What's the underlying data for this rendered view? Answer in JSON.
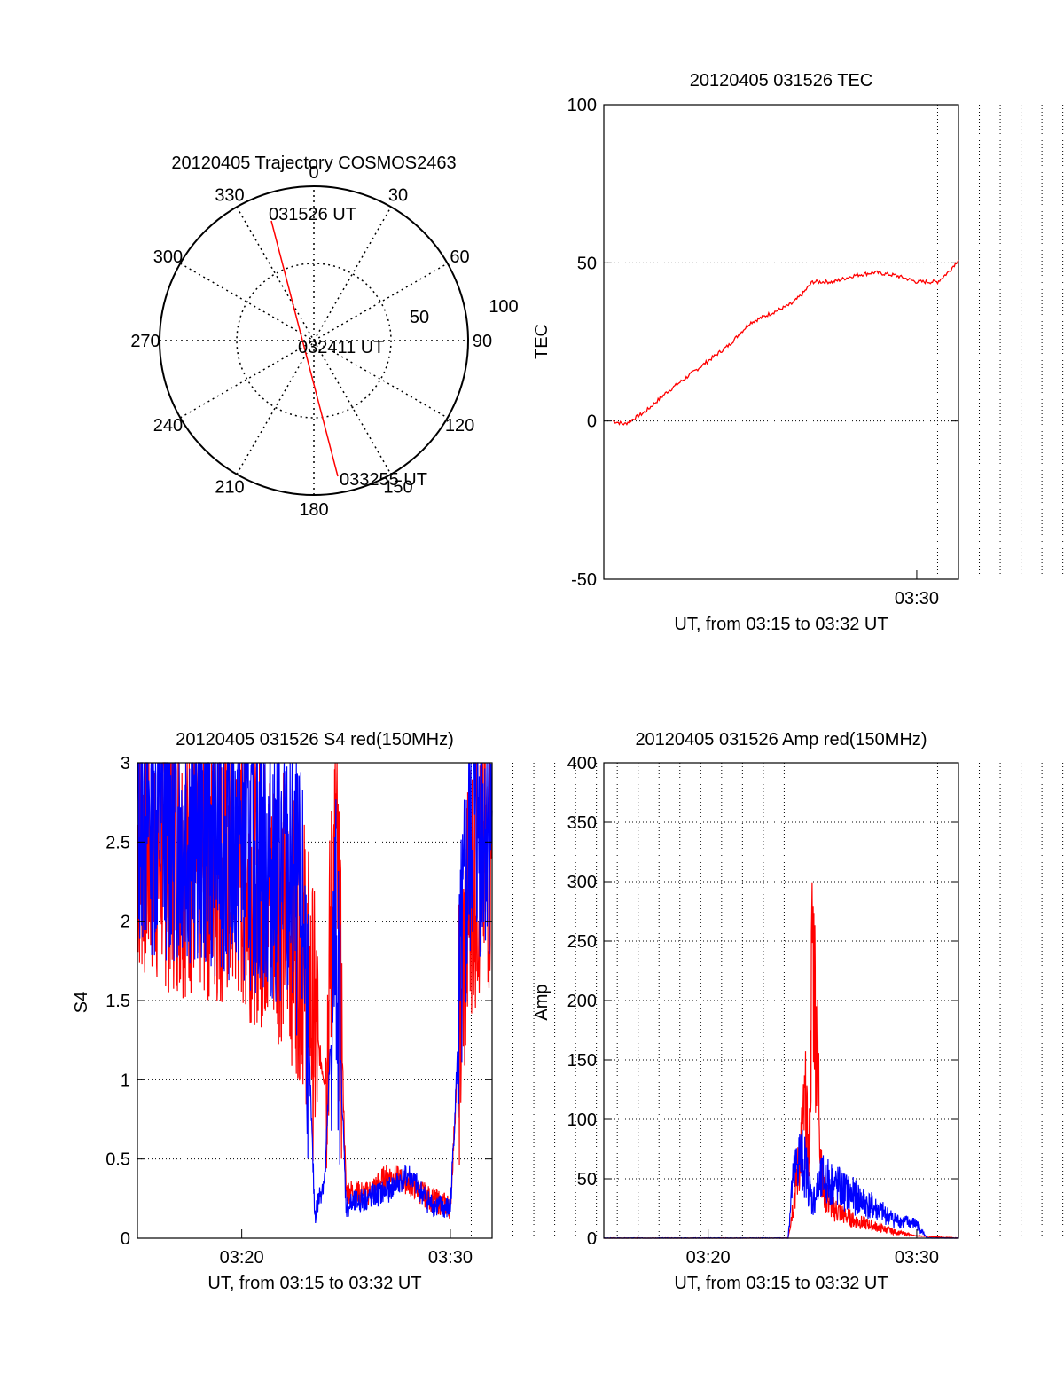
{
  "colors": {
    "red": "#ff0000",
    "blue": "#0000ff",
    "axis": "#000000",
    "grid": "#000000"
  },
  "chart_data": [
    {
      "type": "polar",
      "title": "20120405 Trajectory COSMOS2463",
      "angle_labels": [
        "0",
        "30",
        "60",
        "90",
        "120",
        "150",
        "180",
        "210",
        "240",
        "270",
        "300",
        "330"
      ],
      "radius_labels": [
        "50",
        "100"
      ],
      "grid": true,
      "series": [
        {
          "color": "red",
          "points": [
            {
              "azimuth": 345,
              "elevation": 20
            },
            {
              "azimuth": 163,
              "elevation": 5
            }
          ]
        }
      ],
      "annotations": [
        "031526 UT",
        "032411 UT",
        "033255 UT"
      ]
    },
    {
      "type": "line",
      "title": "20120405 031526 TEC",
      "xlabel": "UT, from 03:15 to 03:32 UT",
      "ylabel": "TEC",
      "ylim": [
        -50,
        100
      ],
      "yticks": [
        "-50",
        "0",
        "50",
        "100"
      ],
      "xticks": [
        "03:30"
      ],
      "grid": true,
      "series": [
        {
          "color": "red",
          "x": [
            "03:15:26",
            "03:16:00",
            "03:17:00",
            "03:18:00",
            "03:19:00",
            "03:20:00",
            "03:21:00",
            "03:22:00",
            "03:23:00",
            "03:24:00",
            "03:24:30",
            "03:25:00",
            "03:26:00",
            "03:27:00",
            "03:28:00",
            "03:29:00",
            "03:30:00",
            "03:31:00",
            "03:31:30",
            "03:32:00"
          ],
          "y": [
            0,
            -1,
            3,
            9,
            14,
            19,
            24,
            31,
            34,
            37,
            40,
            44,
            44,
            46,
            47,
            46,
            44,
            44,
            47,
            51
          ]
        }
      ]
    },
    {
      "type": "line",
      "title": "20120405 031526 S4 red(150MHz)",
      "xlabel": "UT, from 03:15 to 03:32 UT",
      "ylabel": "S4",
      "ylim": [
        0,
        3
      ],
      "yticks": [
        "0",
        "0.5",
        "1",
        "1.5",
        "2",
        "2.5",
        "3"
      ],
      "xticks": [
        "03:20",
        "03:30"
      ],
      "grid": true,
      "series": [
        {
          "color": "red",
          "x": [
            "03:15:00",
            "03:20:00",
            "03:22:00",
            "03:23:00",
            "03:23:30",
            "03:24:00",
            "03:24:30",
            "03:25:00",
            "03:26:00",
            "03:27:00",
            "03:28:00",
            "03:29:00",
            "03:30:00",
            "03:30:30",
            "03:31:00",
            "03:32:00"
          ],
          "y": [
            2.5,
            2.3,
            2.1,
            1.8,
            1.3,
            1.0,
            2.6,
            0.3,
            0.28,
            0.4,
            0.35,
            0.25,
            0.2,
            1.5,
            2.3,
            2.4
          ]
        },
        {
          "color": "blue",
          "x": [
            "03:15:00",
            "03:20:00",
            "03:22:00",
            "03:23:00",
            "03:23:30",
            "03:24:00",
            "03:24:30",
            "03:25:00",
            "03:26:00",
            "03:27:00",
            "03:28:00",
            "03:29:00",
            "03:30:00",
            "03:30:30",
            "03:31:00",
            "03:32:00"
          ],
          "y": [
            2.7,
            2.5,
            2.3,
            2.0,
            0.15,
            0.4,
            2.0,
            0.2,
            0.25,
            0.3,
            0.4,
            0.22,
            0.18,
            1.6,
            2.6,
            2.7
          ]
        }
      ]
    },
    {
      "type": "line",
      "title": "20120405 031526 Amp red(150MHz)",
      "xlabel": "UT, from 03:15 to 03:32 UT",
      "ylabel": "Amp",
      "ylim": [
        0,
        400
      ],
      "yticks": [
        "0",
        "50",
        "100",
        "150",
        "200",
        "250",
        "300",
        "350",
        "400"
      ],
      "xticks": [
        "03:20",
        "03:30"
      ],
      "grid": true,
      "series": [
        {
          "color": "red",
          "x": [
            "03:15:00",
            "03:23:50",
            "03:24:00",
            "03:24:20",
            "03:24:40",
            "03:24:50",
            "03:25:00",
            "03:25:30",
            "03:26:00",
            "03:27:00",
            "03:28:00",
            "03:29:00",
            "03:30:00",
            "03:32:00"
          ],
          "y": [
            0,
            0,
            20,
            60,
            110,
            60,
            255,
            40,
            25,
            15,
            10,
            5,
            2,
            0
          ]
        },
        {
          "color": "blue",
          "x": [
            "03:15:00",
            "03:23:50",
            "03:24:00",
            "03:24:20",
            "03:24:40",
            "03:25:00",
            "03:25:30",
            "03:26:00",
            "03:27:00",
            "03:28:00",
            "03:29:00",
            "03:30:00",
            "03:30:30",
            "03:32:00"
          ],
          "y": [
            0,
            0,
            40,
            70,
            60,
            30,
            50,
            45,
            35,
            25,
            15,
            12,
            0,
            0
          ]
        }
      ]
    }
  ]
}
